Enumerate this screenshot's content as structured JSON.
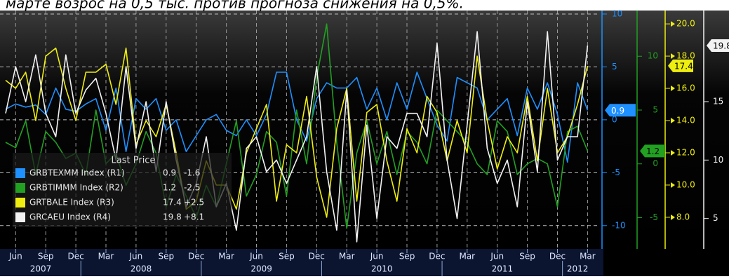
{
  "chart_data": {
    "type": "line",
    "title": "марте возрос на 0,5 тыс. против прогноза снижения на 0,5%.",
    "legend_title": "Last Price",
    "x": [
      "2007-05",
      "2007-06",
      "2007-07",
      "2007-08",
      "2007-09",
      "2007-10",
      "2007-11",
      "2007-12",
      "2008-01",
      "2008-02",
      "2008-03",
      "2008-04",
      "2008-05",
      "2008-06",
      "2008-07",
      "2008-08",
      "2008-09",
      "2008-10",
      "2008-11",
      "2008-12",
      "2009-01",
      "2009-02",
      "2009-03",
      "2009-04",
      "2009-05",
      "2009-06",
      "2009-07",
      "2009-08",
      "2009-09",
      "2009-10",
      "2009-11",
      "2009-12",
      "2010-01",
      "2010-02",
      "2010-03",
      "2010-04",
      "2010-05",
      "2010-06",
      "2010-07",
      "2010-08",
      "2010-09",
      "2010-10",
      "2010-11",
      "2010-12",
      "2011-01",
      "2011-02",
      "2011-03",
      "2011-04",
      "2011-05",
      "2011-06",
      "2011-07",
      "2011-08",
      "2011-09",
      "2011-10",
      "2011-11",
      "2011-12",
      "2012-01",
      "2012-02",
      "2012-03"
    ],
    "xticks": [
      {
        "value": "2007-06",
        "label": "Jun"
      },
      {
        "value": "2007-09",
        "label": "Sep"
      },
      {
        "value": "2007-12",
        "label": "Dec"
      },
      {
        "value": "2008-03",
        "label": "Mar"
      },
      {
        "value": "2008-06",
        "label": "Jun"
      },
      {
        "value": "2008-09",
        "label": "Sep"
      },
      {
        "value": "2008-12",
        "label": "Dec"
      },
      {
        "value": "2009-03",
        "label": "Mar"
      },
      {
        "value": "2009-06",
        "label": "Jun"
      },
      {
        "value": "2009-09",
        "label": "Sep"
      },
      {
        "value": "2009-12",
        "label": "Dec"
      },
      {
        "value": "2010-03",
        "label": "Mar"
      },
      {
        "value": "2010-06",
        "label": "Jun"
      },
      {
        "value": "2010-09",
        "label": "Sep"
      },
      {
        "value": "2010-12",
        "label": "Dec"
      },
      {
        "value": "2011-03",
        "label": "Mar"
      },
      {
        "value": "2011-06",
        "label": "Jun"
      },
      {
        "value": "2011-09",
        "label": "Sep"
      },
      {
        "value": "2011-12",
        "label": "Dec"
      },
      {
        "value": "2012-03",
        "label": "Mar"
      }
    ],
    "year_ticks": [
      2007,
      2008,
      2009,
      2010,
      2011,
      2012
    ],
    "ylim": [
      -12.2,
      10.33
    ],
    "yticks": [
      10,
      5,
      0,
      -5,
      -10
    ],
    "y2lim": [
      -7.9,
      14.25
    ],
    "y2ticks": [
      10,
      5,
      0,
      -5
    ],
    "y3lim": [
      6.04,
      20.83
    ],
    "y3ticks": [
      {
        "value": 20,
        "label": "20.0"
      },
      {
        "value": 18,
        "label": "18.0"
      },
      {
        "value": 16,
        "label": "16.0"
      },
      {
        "value": 14,
        "label": "14.0"
      },
      {
        "value": 12,
        "label": "12.0"
      },
      {
        "value": 10,
        "label": "10.0"
      },
      {
        "value": 8,
        "label": "8.0"
      }
    ],
    "y4lim": [
      2.4,
      22.8
    ],
    "y4ticks": [
      15,
      10,
      5
    ],
    "grid": true,
    "series": [
      {
        "name": "GRBTEXMM Index  (R1)",
        "color": "#1e90ff",
        "axis": "y",
        "change": -1.6,
        "values": [
          1,
          1.5,
          1.2,
          1.4,
          0.5,
          3,
          1,
          0.8,
          1.5,
          2,
          -1,
          3,
          -3,
          2,
          1,
          2,
          -1,
          0,
          -3,
          -1.5,
          0,
          0.5,
          -1,
          -1.5,
          0,
          -1.5,
          0.5,
          4.5,
          4.5,
          0,
          -2,
          2,
          3.5,
          3,
          3,
          4,
          1,
          3,
          0,
          3.5,
          1,
          4.5,
          2,
          -0.5,
          -2,
          4,
          3.5,
          3,
          0,
          1,
          2,
          -1.5,
          3,
          1,
          3.5,
          0.5,
          -4,
          3.5,
          0.9
        ]
      },
      {
        "name": "GRBTIMMM Index  (R2)",
        "color": "#22a022",
        "axis": "y2",
        "change": -2.5,
        "values": [
          2,
          1.5,
          4,
          -1,
          3,
          2,
          0.5,
          1,
          -1,
          5,
          0,
          1,
          -2,
          0,
          3,
          1,
          -4,
          -1,
          -3,
          -5,
          -2,
          -4,
          0,
          4,
          -3,
          -1,
          3,
          2,
          -3,
          5,
          0,
          8,
          13,
          2,
          -6,
          1,
          4,
          0,
          3,
          -1,
          3,
          2,
          0,
          5,
          4,
          3,
          2,
          0,
          -1,
          4,
          3,
          -1,
          0,
          0.5,
          0,
          -4,
          3,
          3.5,
          1.2
        ]
      },
      {
        "name": "GRTBALE Index  (R3)",
        "color": "#eeee10",
        "axis": "y3",
        "change": {
          "value": 2.5,
          "label": "+2.5"
        },
        "values": [
          16.5,
          16,
          17,
          14,
          18,
          18.5,
          16,
          14,
          17,
          17,
          17.5,
          15,
          18.5,
          12.5,
          14,
          13,
          15,
          12,
          8.5,
          9,
          11.5,
          10,
          10,
          8.5,
          12,
          13.5,
          15,
          9,
          12.5,
          12,
          15.5,
          10.5,
          8,
          13.5,
          16,
          9,
          14.5,
          15,
          11.5,
          9,
          13.5,
          12,
          15.5,
          14.5,
          11.5,
          14,
          12,
          18,
          14,
          11,
          13,
          12,
          15.5,
          11.5,
          16,
          12,
          13,
          15,
          17.4
        ]
      },
      {
        "name": "GRCAEU Index  (R4)",
        "color": "#f2f2f2",
        "axis": "y4",
        "change": {
          "value": 8.1,
          "label": "+8.1"
        },
        "values": [
          14,
          18,
          15,
          19,
          14,
          12,
          19,
          14,
          16,
          17,
          14,
          10,
          18,
          11,
          15,
          9,
          15,
          10,
          6,
          8,
          12,
          6,
          8,
          4,
          11,
          12,
          9,
          10,
          8,
          10,
          12,
          18,
          9,
          4,
          16,
          3,
          13,
          5,
          12,
          11,
          14,
          14,
          12,
          20,
          10,
          5,
          13,
          21,
          11,
          8,
          10,
          6,
          15,
          9,
          21,
          10,
          12,
          12,
          19.8
        ]
      }
    ]
  }
}
